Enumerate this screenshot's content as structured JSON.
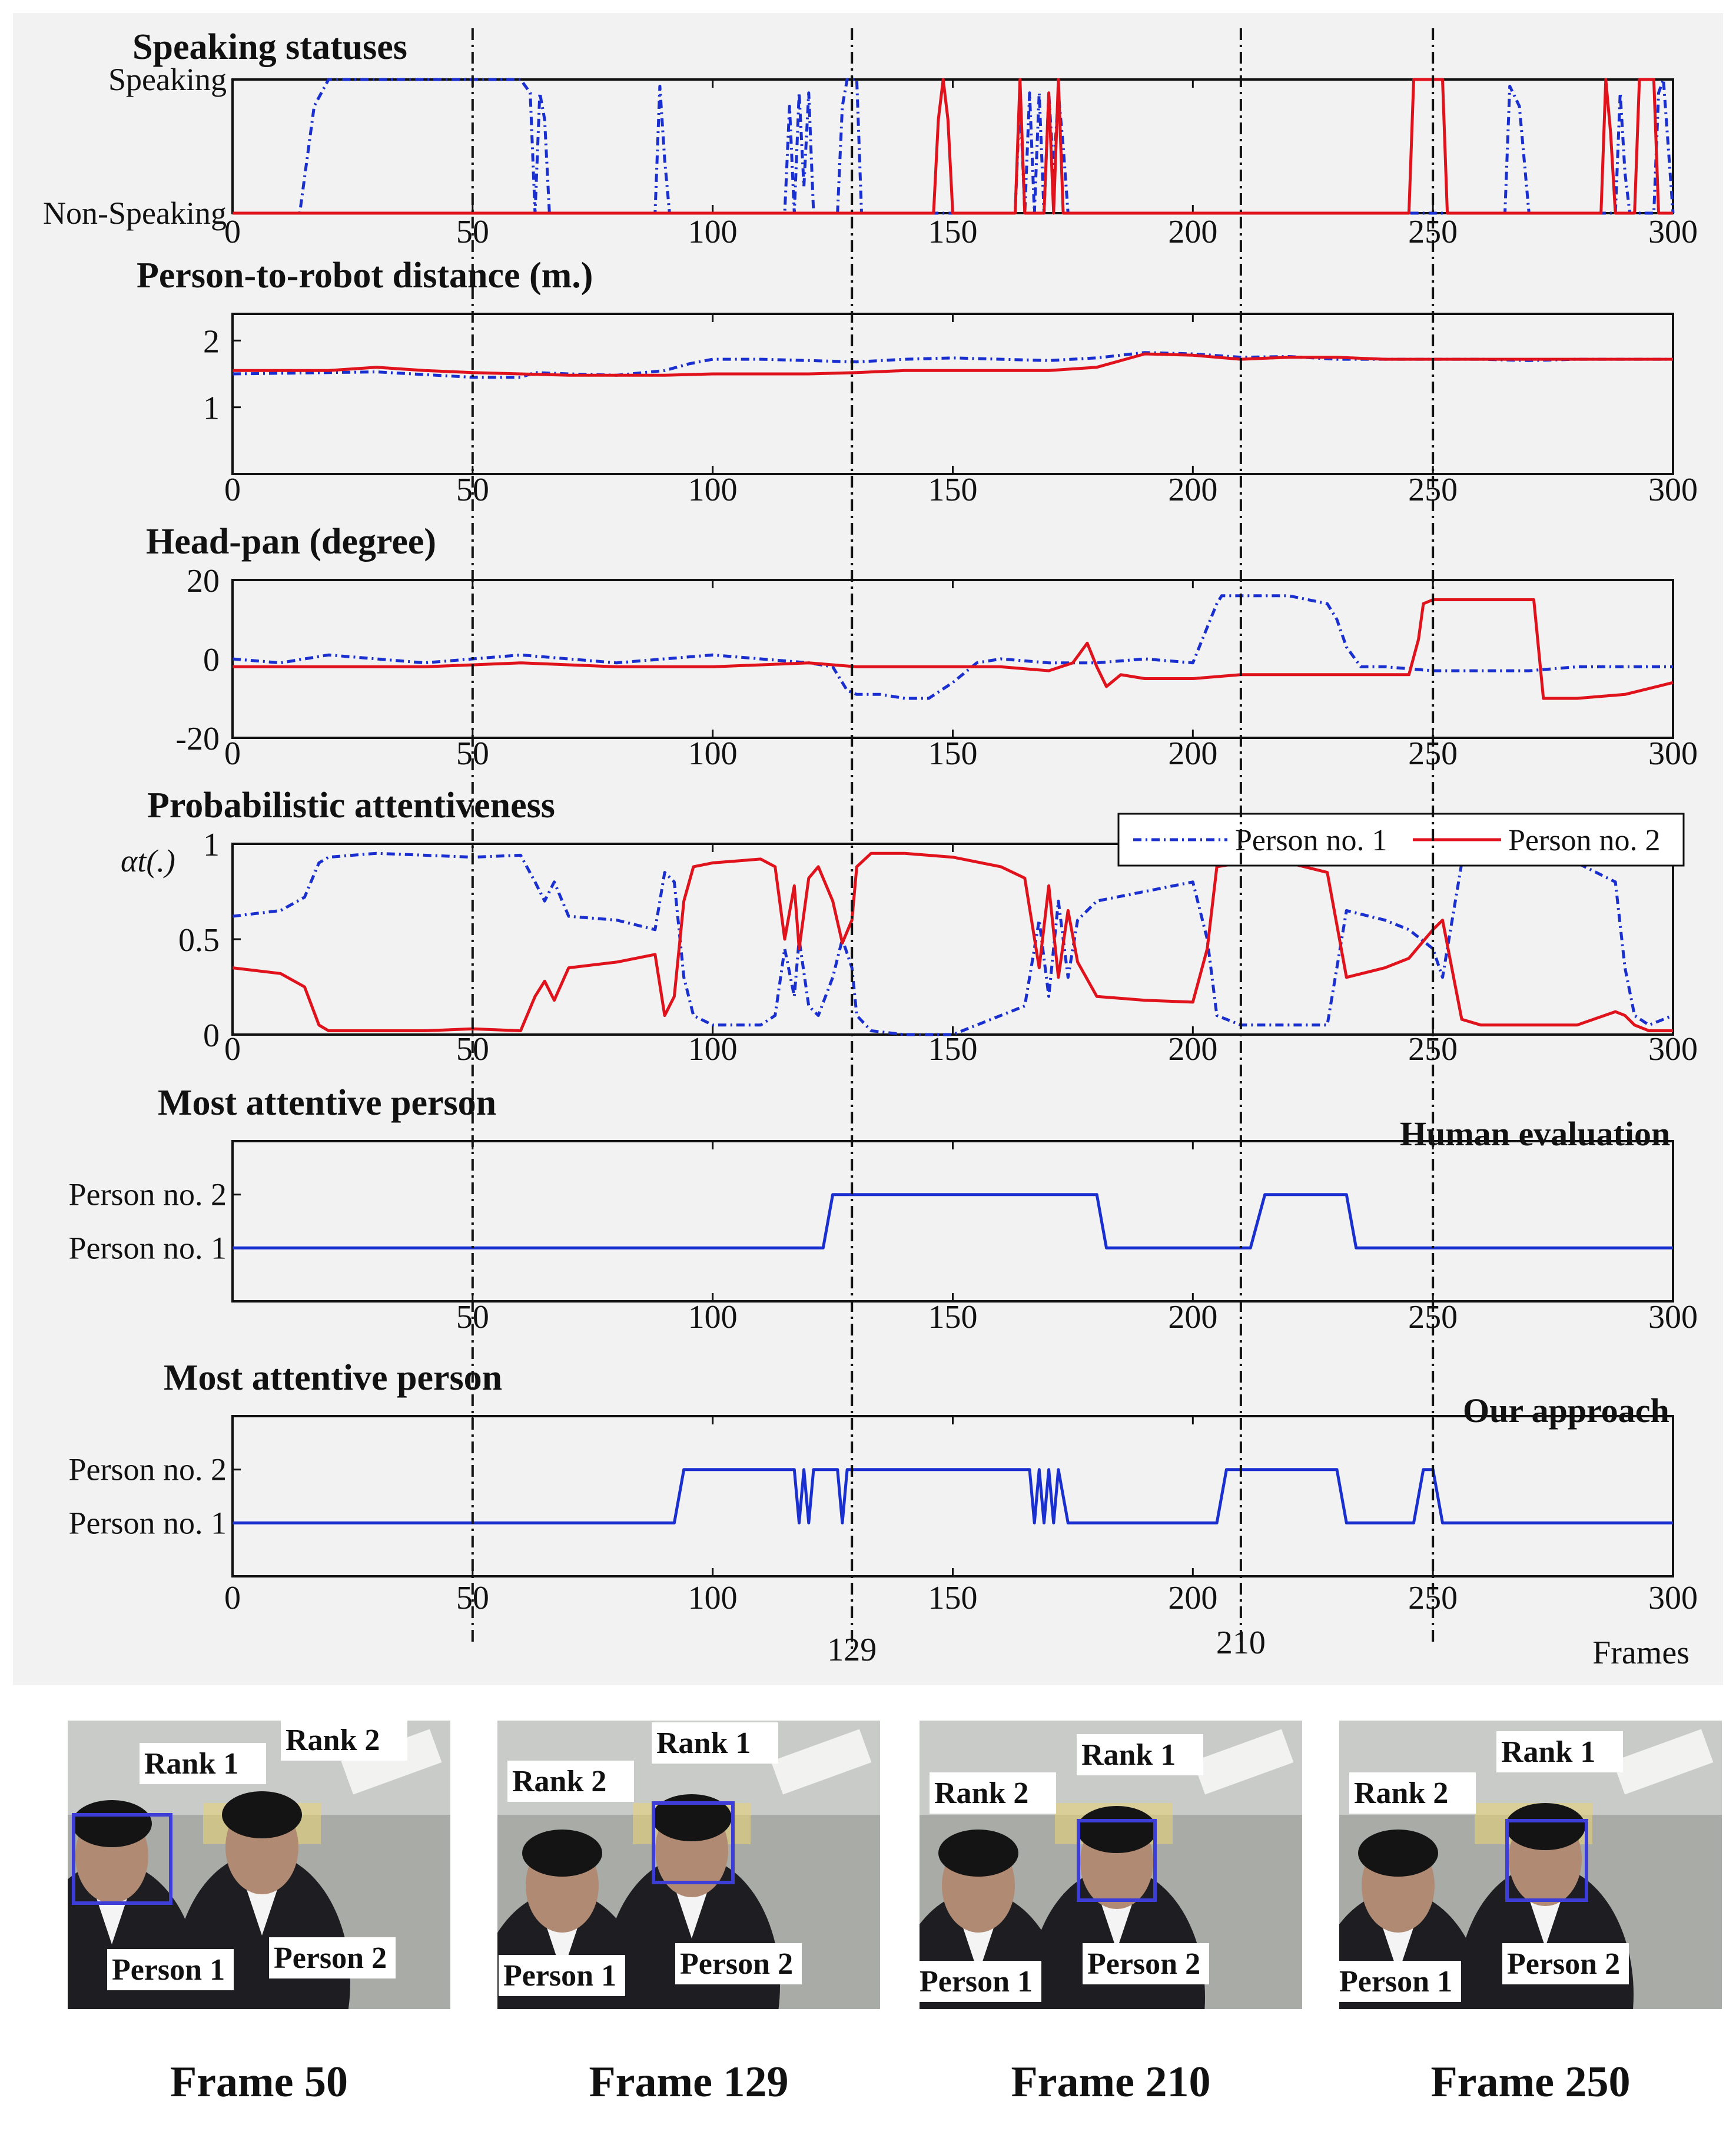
{
  "colors": {
    "person1": "#1a2fd0",
    "person2": "#e0121c",
    "rank_box": "#3d3dd8",
    "background": "#f2f2f2"
  },
  "legend": {
    "p1": "Person no. 1",
    "p2": "Person no. 2"
  },
  "axis": {
    "x_ticks": [
      "0",
      "50",
      "100",
      "150",
      "200",
      "250",
      "300"
    ],
    "x_label": "Frames",
    "x_ticks_panel5": [
      "50",
      "100",
      "150",
      "200",
      "250",
      "300"
    ]
  },
  "markers": {
    "frames": [
      50,
      129,
      210,
      250
    ],
    "labels": [
      "129",
      "210"
    ]
  },
  "chart_data": [
    {
      "type": "line",
      "title": "Speaking statuses",
      "ylim": [
        0,
        1
      ],
      "y_tick_labels": [
        "Non-Speaking",
        "Speaking"
      ],
      "xlim": [
        0,
        300
      ],
      "series": [
        {
          "name": "Person no. 1",
          "x": [
            0,
            14,
            17,
            20,
            60,
            62,
            63,
            64,
            65,
            66,
            67,
            88,
            89,
            90,
            91,
            115,
            116,
            117,
            118,
            119,
            120,
            121,
            126,
            127,
            128,
            130,
            131,
            163,
            164,
            165,
            166,
            167,
            168,
            169,
            170,
            171,
            172,
            173,
            174,
            175,
            176,
            249,
            250,
            265,
            266,
            268,
            270,
            271,
            288,
            289,
            290,
            291,
            296,
            297,
            298,
            300
          ],
          "values": [
            0,
            0,
            0.8,
            1,
            1,
            0.9,
            0,
            0.9,
            0.7,
            0,
            0,
            0,
            0.95,
            0.4,
            0,
            0,
            0.8,
            0,
            0.9,
            0.2,
            0.9,
            0,
            0,
            0.8,
            1,
            1,
            0,
            0,
            0.9,
            0,
            0.9,
            0,
            0.9,
            0,
            0.9,
            0.3,
            0.9,
            0.5,
            0,
            0,
            0,
            0,
            0,
            0,
            0.95,
            0.8,
            0,
            0,
            0,
            0.9,
            0.3,
            0,
            0,
            0.9,
            1,
            0
          ]
        },
        {
          "name": "Person no. 2",
          "x": [
            0,
            146,
            147,
            148,
            149,
            150,
            163,
            164,
            165,
            166,
            167,
            168,
            169,
            170,
            171,
            172,
            173,
            245,
            246,
            247,
            252,
            253,
            254,
            285,
            286,
            287,
            288,
            289,
            290,
            291,
            292,
            293,
            296,
            297,
            300
          ],
          "values": [
            0,
            0,
            0.7,
            1,
            0.7,
            0,
            0,
            1,
            0,
            0,
            0,
            0,
            0,
            0.9,
            0,
            1,
            0,
            0,
            1,
            1,
            1,
            0,
            0,
            0,
            1,
            0.6,
            0,
            0,
            0,
            0,
            0,
            1,
            1,
            0,
            0
          ]
        }
      ]
    },
    {
      "type": "line",
      "title": "Person-to-robot distance (m.)",
      "ylim": [
        0,
        2.4
      ],
      "y_ticks": [
        "1",
        "2"
      ],
      "xlim": [
        0,
        300
      ],
      "series": [
        {
          "name": "Person no. 1",
          "x": [
            0,
            20,
            30,
            50,
            60,
            63,
            70,
            80,
            90,
            95,
            100,
            110,
            120,
            130,
            140,
            150,
            160,
            170,
            180,
            190,
            200,
            210,
            220,
            230,
            240,
            250,
            260,
            270,
            280,
            290,
            300
          ],
          "values": [
            1.5,
            1.52,
            1.53,
            1.45,
            1.45,
            1.52,
            1.5,
            1.48,
            1.55,
            1.65,
            1.72,
            1.72,
            1.7,
            1.68,
            1.72,
            1.74,
            1.72,
            1.7,
            1.74,
            1.82,
            1.8,
            1.75,
            1.76,
            1.72,
            1.72,
            1.72,
            1.72,
            1.7,
            1.72,
            1.72,
            1.72
          ]
        },
        {
          "name": "Person no. 2",
          "x": [
            0,
            20,
            30,
            40,
            50,
            60,
            70,
            80,
            90,
            100,
            110,
            120,
            130,
            140,
            150,
            160,
            170,
            180,
            190,
            200,
            210,
            220,
            230,
            240,
            250,
            260,
            270,
            280,
            290,
            300
          ],
          "values": [
            1.55,
            1.55,
            1.6,
            1.55,
            1.52,
            1.5,
            1.48,
            1.48,
            1.48,
            1.5,
            1.5,
            1.5,
            1.52,
            1.55,
            1.55,
            1.55,
            1.55,
            1.6,
            1.8,
            1.78,
            1.72,
            1.75,
            1.75,
            1.72,
            1.72,
            1.72,
            1.72,
            1.72,
            1.72,
            1.72
          ]
        }
      ]
    },
    {
      "type": "line",
      "title": "Head-pan (degree)",
      "ylim": [
        -20,
        20
      ],
      "y_ticks": [
        "-20",
        "0",
        "20"
      ],
      "xlim": [
        0,
        300
      ],
      "series": [
        {
          "name": "Person no. 1",
          "x": [
            0,
            10,
            20,
            30,
            40,
            50,
            60,
            70,
            80,
            90,
            100,
            110,
            120,
            125,
            128,
            130,
            135,
            140,
            145,
            150,
            155,
            160,
            170,
            180,
            190,
            200,
            202,
            205,
            206,
            208,
            210,
            220,
            228,
            230,
            232,
            235,
            240,
            250,
            260,
            270,
            280,
            290,
            300
          ],
          "values": [
            0,
            -1,
            1,
            0,
            -1,
            0,
            1,
            0,
            -1,
            0,
            1,
            0,
            -1,
            -2,
            -8,
            -9,
            -9,
            -10,
            -10,
            -6,
            -1,
            0,
            -1,
            -1,
            0,
            -1,
            5,
            14,
            16,
            16,
            16,
            16,
            14,
            10,
            3,
            -2,
            -2,
            -3,
            -3,
            -3,
            -2,
            -2,
            -2
          ]
        },
        {
          "name": "Person no. 2",
          "x": [
            0,
            20,
            40,
            60,
            80,
            100,
            120,
            130,
            140,
            150,
            160,
            170,
            175,
            178,
            180,
            182,
            185,
            190,
            200,
            210,
            220,
            230,
            240,
            245,
            247,
            248,
            250,
            270,
            271,
            273,
            275,
            280,
            290,
            300
          ],
          "values": [
            -2,
            -2,
            -2,
            -1,
            -2,
            -2,
            -1,
            -2,
            -2,
            -2,
            -2,
            -3,
            -1,
            4,
            -2,
            -7,
            -4,
            -5,
            -5,
            -4,
            -4,
            -4,
            -4,
            -4,
            5,
            14,
            15,
            15,
            15,
            -10,
            -10,
            -10,
            -9,
            -6
          ]
        }
      ]
    },
    {
      "type": "line",
      "title": "Probabilistic attentiveness",
      "ylim": [
        0,
        1
      ],
      "y_ticks": [
        "0",
        "0.5",
        "1"
      ],
      "y_symbol": "αt(.)",
      "xlim": [
        0,
        300
      ],
      "series": [
        {
          "name": "Person no. 1",
          "x": [
            0,
            10,
            15,
            18,
            20,
            30,
            40,
            50,
            60,
            63,
            65,
            67,
            70,
            80,
            88,
            90,
            92,
            94,
            96,
            100,
            110,
            113,
            115,
            117,
            118,
            120,
            122,
            125,
            127,
            129,
            130,
            133,
            140,
            150,
            160,
            165,
            168,
            170,
            172,
            174,
            176,
            180,
            190,
            200,
            203,
            205,
            210,
            220,
            228,
            232,
            240,
            245,
            250,
            252,
            256,
            260,
            270,
            280,
            288,
            290,
            292,
            295,
            300
          ],
          "values": [
            0.62,
            0.65,
            0.72,
            0.9,
            0.93,
            0.95,
            0.94,
            0.93,
            0.94,
            0.8,
            0.7,
            0.8,
            0.62,
            0.6,
            0.55,
            0.85,
            0.8,
            0.3,
            0.1,
            0.05,
            0.05,
            0.1,
            0.45,
            0.2,
            0.5,
            0.15,
            0.1,
            0.3,
            0.5,
            0.35,
            0.1,
            0.02,
            0,
            0,
            0.1,
            0.15,
            0.6,
            0.2,
            0.7,
            0.3,
            0.6,
            0.7,
            0.75,
            0.8,
            0.5,
            0.1,
            0.05,
            0.05,
            0.05,
            0.65,
            0.6,
            0.55,
            0.45,
            0.3,
            0.9,
            0.92,
            0.95,
            0.9,
            0.8,
            0.35,
            0.1,
            0.05,
            0.1
          ]
        },
        {
          "name": "Person no. 2",
          "x": [
            0,
            10,
            15,
            18,
            20,
            30,
            40,
            50,
            60,
            63,
            65,
            67,
            70,
            80,
            88,
            90,
            92,
            94,
            96,
            100,
            110,
            113,
            115,
            117,
            118,
            120,
            122,
            125,
            127,
            129,
            130,
            133,
            140,
            150,
            160,
            165,
            168,
            170,
            172,
            174,
            176,
            180,
            190,
            200,
            203,
            205,
            210,
            220,
            228,
            232,
            240,
            245,
            250,
            252,
            256,
            260,
            270,
            280,
            288,
            290,
            292,
            295,
            300
          ],
          "values": [
            0.35,
            0.32,
            0.25,
            0.05,
            0.02,
            0.02,
            0.02,
            0.03,
            0.02,
            0.2,
            0.28,
            0.18,
            0.35,
            0.38,
            0.42,
            0.1,
            0.2,
            0.7,
            0.88,
            0.9,
            0.92,
            0.88,
            0.5,
            0.78,
            0.45,
            0.82,
            0.88,
            0.7,
            0.48,
            0.6,
            0.88,
            0.95,
            0.95,
            0.93,
            0.88,
            0.82,
            0.35,
            0.78,
            0.3,
            0.65,
            0.38,
            0.2,
            0.18,
            0.17,
            0.45,
            0.88,
            0.9,
            0.9,
            0.85,
            0.3,
            0.35,
            0.4,
            0.55,
            0.6,
            0.08,
            0.05,
            0.05,
            0.05,
            0.12,
            0.1,
            0.05,
            0.02,
            0.02
          ]
        }
      ]
    },
    {
      "type": "line",
      "title": "Most attentive person",
      "annotation": "Human evaluation",
      "ylim": [
        0,
        3
      ],
      "y_tick_labels": [
        "Person no. 1",
        "Person no. 2"
      ],
      "xlim": [
        0,
        300
      ],
      "series": [
        {
          "name": "Most attentive person",
          "x": [
            0,
            123,
            125,
            180,
            182,
            212,
            215,
            232,
            234,
            300
          ],
          "values": [
            1,
            1,
            2,
            2,
            1,
            1,
            2,
            2,
            1,
            1
          ]
        }
      ]
    },
    {
      "type": "line",
      "title": "Most attentive person",
      "annotation": "Our approach",
      "ylim": [
        0,
        3
      ],
      "y_tick_labels": [
        "Person no. 1",
        "Person no. 2"
      ],
      "xlim": [
        0,
        300
      ],
      "series": [
        {
          "name": "Most attentive person",
          "x": [
            0,
            92,
            94,
            117,
            118,
            119,
            120,
            121,
            126,
            127,
            128,
            166,
            167,
            168,
            169,
            170,
            171,
            172,
            174,
            205,
            207,
            230,
            232,
            246,
            248,
            250,
            252,
            300
          ],
          "values": [
            1,
            1,
            2,
            2,
            1,
            2,
            1,
            2,
            2,
            1,
            2,
            2,
            1,
            2,
            1,
            2,
            1,
            2,
            1,
            1,
            2,
            2,
            1,
            1,
            2,
            2,
            1,
            1
          ]
        }
      ]
    }
  ],
  "frames": [
    {
      "caption": "Frame 50",
      "labels": [
        {
          "text": "Rank 1"
        },
        {
          "text": "Rank 2"
        },
        {
          "text": "Person 1"
        },
        {
          "text": "Person 2"
        }
      ]
    },
    {
      "caption": "Frame 129",
      "labels": [
        {
          "text": "Rank 2"
        },
        {
          "text": "Rank 1"
        },
        {
          "text": "Person 1"
        },
        {
          "text": "Person 2"
        }
      ]
    },
    {
      "caption": "Frame 210",
      "labels": [
        {
          "text": "Rank 2"
        },
        {
          "text": "Rank 1"
        },
        {
          "text": "Person 1"
        },
        {
          "text": "Person 2"
        }
      ]
    },
    {
      "caption": "Frame 250",
      "labels": [
        {
          "text": "Rank 2"
        },
        {
          "text": "Rank 1"
        },
        {
          "text": "Person 1"
        },
        {
          "text": "Person 2"
        }
      ]
    }
  ]
}
